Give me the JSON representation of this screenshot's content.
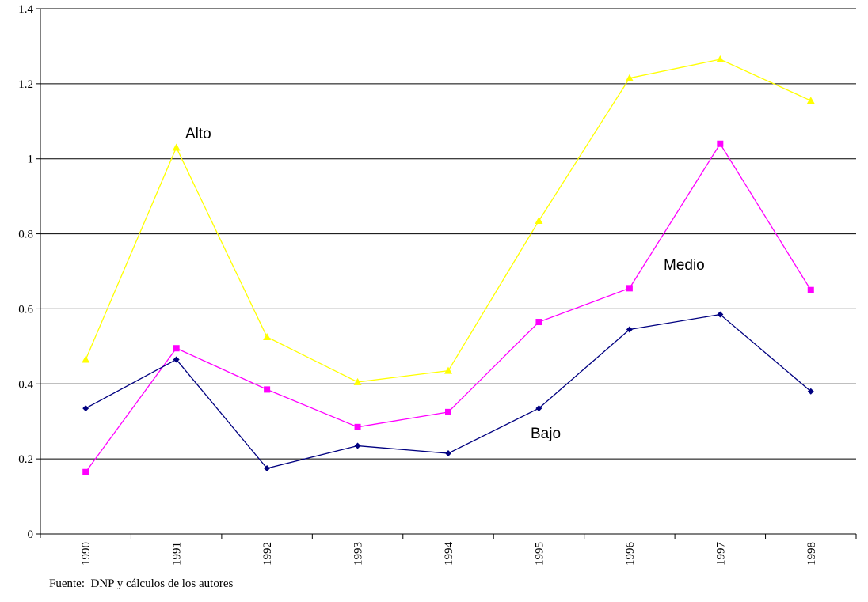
{
  "source_note": "Fuente:  DNP y cálculos de los autores",
  "chart_data": {
    "type": "line",
    "title": "",
    "xlabel": "",
    "ylabel": "",
    "categories": [
      "1990",
      "1991",
      "1992",
      "1993",
      "1994",
      "1995",
      "1996",
      "1997",
      "1998"
    ],
    "ylim": [
      0,
      1.4
    ],
    "yticks": [
      "0",
      "0.2",
      "0.4",
      "0.6",
      "0.8",
      "1",
      "1.2",
      "1.4"
    ],
    "grid": true,
    "series": [
      {
        "name": "Alto",
        "color": "#FFFF00",
        "marker": "triangle",
        "values": [
          0.465,
          1.03,
          0.525,
          0.405,
          0.435,
          0.835,
          1.215,
          1.265,
          1.155
        ]
      },
      {
        "name": "Medio",
        "color": "#FF00FF",
        "marker": "square",
        "values": [
          0.165,
          0.495,
          0.385,
          0.285,
          0.325,
          0.565,
          0.655,
          1.04,
          0.65
        ]
      },
      {
        "name": "Bajo",
        "color": "#000080",
        "marker": "diamond",
        "values": [
          0.335,
          0.465,
          0.175,
          0.235,
          0.215,
          0.335,
          0.545,
          0.585,
          0.38
        ]
      }
    ]
  }
}
